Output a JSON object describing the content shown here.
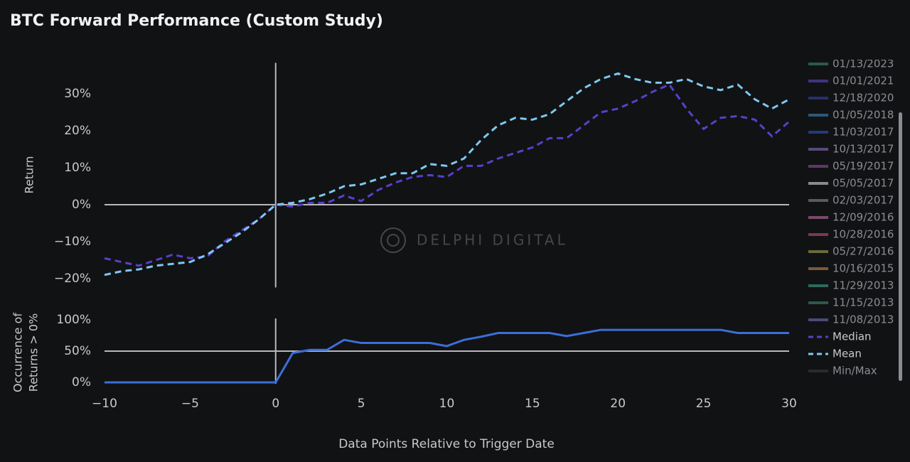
{
  "title": "BTC Forward Performance (Custom Study)",
  "watermark": "DELPHI DIGITAL",
  "x_label": "Data Points Relative to Trigger Date",
  "chart_data": [
    {
      "type": "line",
      "y_label": "Return",
      "x": [
        -10,
        -9,
        -8,
        -7,
        -6,
        -5,
        -4,
        -3,
        -2,
        -1,
        0,
        1,
        2,
        3,
        4,
        5,
        6,
        7,
        8,
        9,
        10,
        11,
        12,
        13,
        14,
        15,
        16,
        17,
        18,
        19,
        20,
        21,
        22,
        23,
        24,
        25,
        26,
        27,
        28,
        29,
        30
      ],
      "xlim": [
        -10,
        30
      ],
      "ylim": [
        -22,
        38
      ],
      "yticks": [
        {
          "value": -20,
          "label": "−20%"
        },
        {
          "value": -10,
          "label": "−10%"
        },
        {
          "value": 0,
          "label": "0%"
        },
        {
          "value": 10,
          "label": "10%"
        },
        {
          "value": 20,
          "label": "20%"
        },
        {
          "value": 30,
          "label": "30%"
        }
      ],
      "reference_lines": {
        "x": 0,
        "y": 0
      },
      "series": [
        {
          "name": "01/13/2023",
          "color": "#2a5a4a"
        },
        {
          "name": "01/01/2021",
          "color": "#3b3580"
        },
        {
          "name": "12/18/2020",
          "color": "#27306e"
        },
        {
          "name": "01/05/2018",
          "color": "#2b5878"
        },
        {
          "name": "11/03/2017",
          "color": "#243a7a"
        },
        {
          "name": "10/13/2017",
          "color": "#5a4a7a"
        },
        {
          "name": "05/19/2017",
          "color": "#5a3a6a"
        },
        {
          "name": "05/05/2017",
          "color": "#8a8a8a"
        },
        {
          "name": "02/03/2017",
          "color": "#5a5a5a"
        },
        {
          "name": "12/09/2016",
          "color": "#7a4a6a"
        },
        {
          "name": "10/28/2016",
          "color": "#7a3a4a"
        },
        {
          "name": "05/27/2016",
          "color": "#6a6a3a"
        },
        {
          "name": "10/16/2015",
          "color": "#7a5a3a"
        },
        {
          "name": "11/29/2013",
          "color": "#2a6a5a"
        },
        {
          "name": "11/15/2013",
          "color": "#2a5a4a"
        },
        {
          "name": "11/08/2013",
          "color": "#4a4a7a"
        },
        {
          "name": "Median",
          "color": "#5b3fc9",
          "dashed": true,
          "values": [
            -14.5,
            -15.5,
            -16.5,
            -15,
            -13.5,
            -14.5,
            -14,
            -10,
            -7,
            -4,
            0,
            -0.5,
            0.5,
            0.5,
            2.5,
            1,
            4,
            6,
            7.5,
            8,
            7.5,
            10.5,
            10.5,
            12.5,
            14,
            15.5,
            18,
            18,
            21.5,
            25,
            26,
            28,
            30.5,
            32.5,
            26,
            20.5,
            23.5,
            24,
            23,
            18.5,
            22.5
          ]
        },
        {
          "name": "Mean",
          "color": "#7ec8f0",
          "dashed": true,
          "values": [
            -19,
            -18,
            -17.5,
            -16.5,
            -16,
            -15.5,
            -13.5,
            -10.5,
            -7.5,
            -4,
            0,
            0.5,
            1.5,
            3,
            5,
            5.5,
            7,
            8.5,
            8.5,
            11,
            10.5,
            12.5,
            17.5,
            21.5,
            23.5,
            23,
            24.5,
            28,
            31.5,
            34,
            35.5,
            34,
            33,
            33,
            34,
            32,
            31,
            32.5,
            28.5,
            26,
            28.5
          ]
        },
        {
          "name": "Min/Max",
          "color": "#2a2b2e"
        }
      ]
    },
    {
      "type": "line",
      "y_label": [
        "Occurrence of",
        "Returns > 0%"
      ],
      "x": [
        -10,
        -9,
        -8,
        -7,
        -6,
        -5,
        -4,
        -3,
        -2,
        -1,
        0,
        1,
        2,
        3,
        4,
        5,
        6,
        7,
        8,
        9,
        10,
        11,
        12,
        13,
        14,
        15,
        16,
        17,
        18,
        19,
        20,
        21,
        22,
        23,
        24,
        25,
        26,
        27,
        28,
        29,
        30
      ],
      "xlim": [
        -10,
        30
      ],
      "xticks": [
        {
          "value": -10,
          "label": "−10"
        },
        {
          "value": -5,
          "label": "−5"
        },
        0,
        5,
        10,
        15,
        20,
        25,
        30
      ],
      "ylim": [
        0,
        100
      ],
      "yticks": [
        {
          "value": 0,
          "label": "0%"
        },
        {
          "value": 50,
          "label": "50%"
        },
        {
          "value": 100,
          "label": "100%"
        }
      ],
      "reference_lines": {
        "x": 0,
        "y": 50
      },
      "color": "#3a6fd8",
      "values": [
        0,
        0,
        0,
        0,
        0,
        0,
        0,
        0,
        0,
        0,
        0,
        47,
        52,
        52,
        68,
        63,
        63,
        63,
        63,
        63,
        58,
        68,
        73,
        79,
        79,
        79,
        79,
        74,
        79,
        84,
        84,
        84,
        84,
        84,
        84,
        84,
        84,
        79,
        79,
        79,
        79
      ]
    }
  ]
}
